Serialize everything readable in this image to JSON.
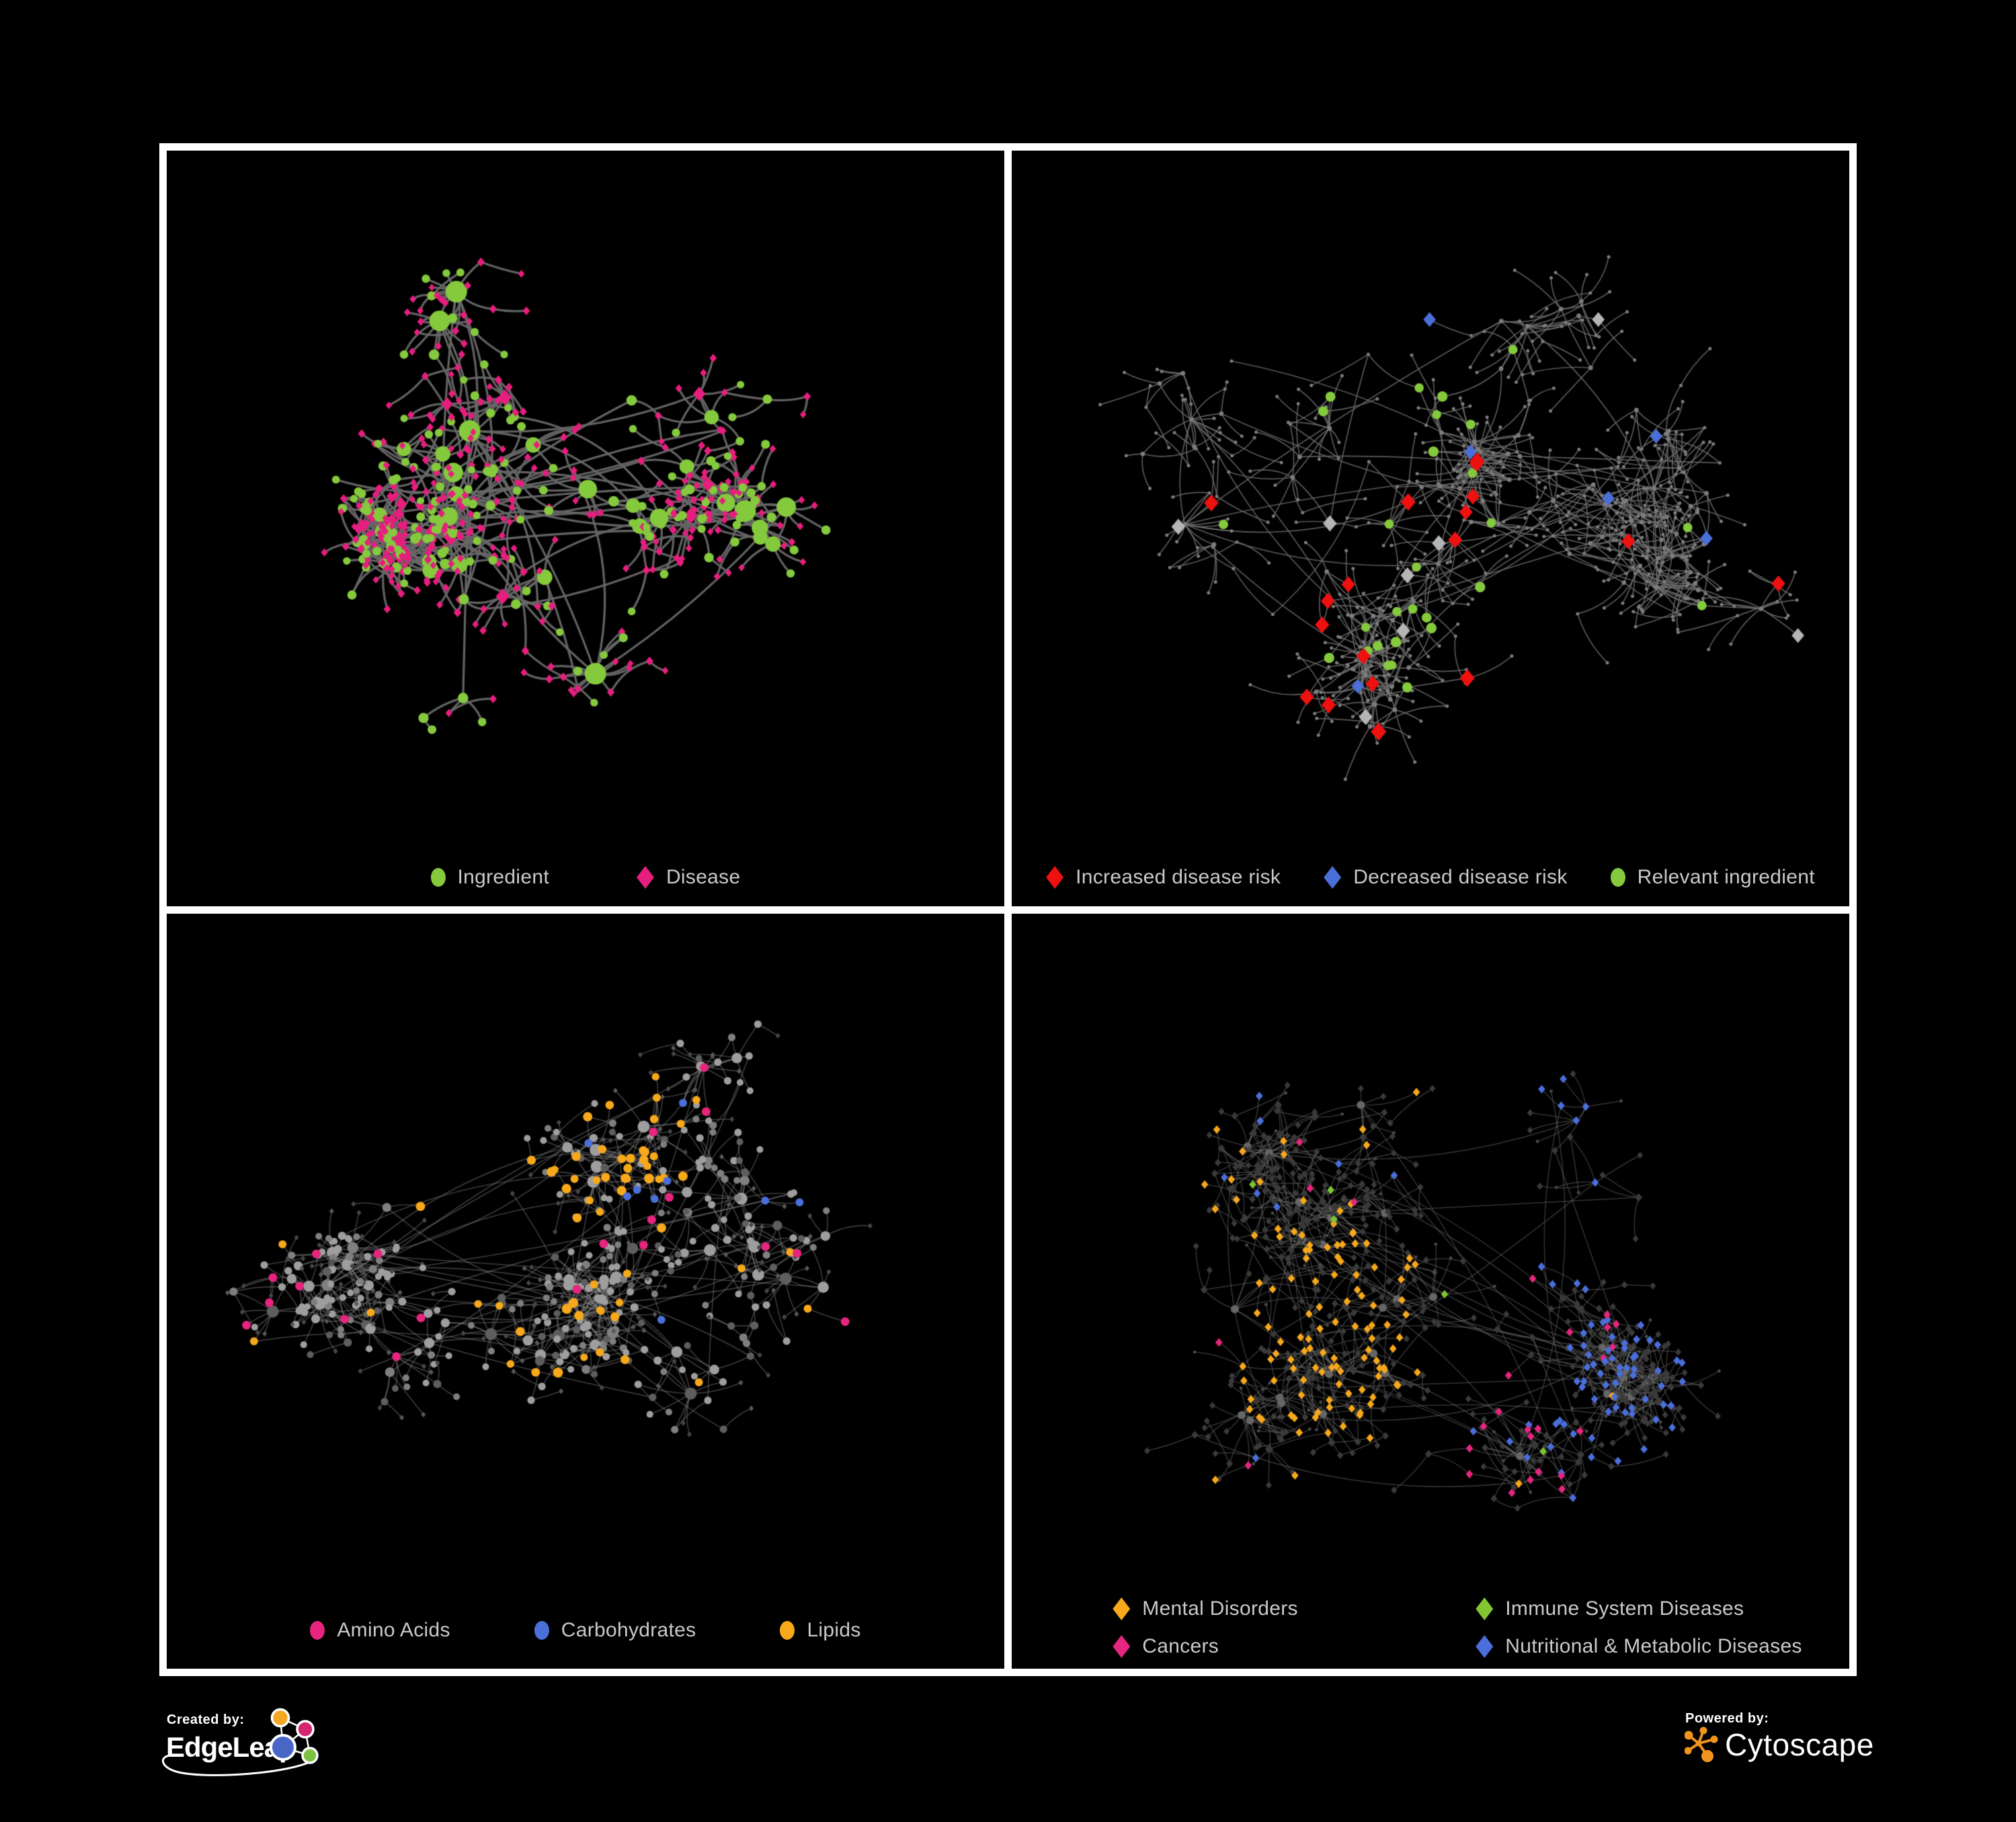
{
  "page": {
    "background": "#000000"
  },
  "panels": [
    {
      "name": "ingredient-disease-network",
      "legend": [
        {
          "shape": "ellipse",
          "color": "#85C93D",
          "label": "Ingredient"
        },
        {
          "shape": "diamond",
          "color": "#E61E7E",
          "label": "Disease"
        }
      ],
      "palette": {
        "green": "#85C93D",
        "pink": "#E61E7E"
      },
      "render": {
        "seed": 1104,
        "nodes": 560,
        "hubs": 13,
        "minDist": 24,
        "varDist": 52,
        "cross": 0.05,
        "bottomPad": 165,
        "edge": {
          "color": "#666666",
          "alpha": 0.95,
          "width": 3.3,
          "curve": 0.22
        },
        "style": "tl"
      }
    },
    {
      "name": "disease-risk-network",
      "legend": [
        {
          "shape": "diamond",
          "color": "#EF1010",
          "label": "Increased disease risk"
        },
        {
          "shape": "diamond",
          "color": "#4A6FD8",
          "label": "Decreased disease risk"
        },
        {
          "shape": "ellipse",
          "color": "#85C93D",
          "label": "Relevant ingredient"
        }
      ],
      "palette": {
        "red": "#EF1010",
        "blue": "#4A6FD8",
        "green": "#85C93D",
        "silver": "#B5B5B5",
        "base": "#7D7D7D"
      },
      "render": {
        "seed": 2317,
        "nodes": 700,
        "hubs": 16,
        "minDist": 30,
        "varDist": 72,
        "cross": 0.04,
        "bottomPad": 165,
        "edge": {
          "color": "#6F6F6F",
          "alpha": 0.8,
          "width": 1.7,
          "curve": 0.18
        },
        "style": "tr"
      }
    },
    {
      "name": "chemical-class-network",
      "legend": [
        {
          "shape": "ellipse",
          "color": "#E6257F",
          "label": "Amino Acids"
        },
        {
          "shape": "ellipse",
          "color": "#4A6FD8",
          "label": "Carbohydrates"
        },
        {
          "shape": "ellipse",
          "color": "#F7A81B",
          "label": "Lipids"
        }
      ],
      "palette": {
        "pink": "#E6257F",
        "blue": "#4A6FD8",
        "orange": "#F7A81B"
      },
      "render": {
        "seed": 3723,
        "nodes": 640,
        "hubs": 14,
        "minDist": 26,
        "varDist": 60,
        "cross": 0.06,
        "bottomPad": 175,
        "edge": {
          "color": "#8F8F8F",
          "alpha": 0.42,
          "width": 1.6,
          "curve": 0.15
        },
        "style": "bl"
      }
    },
    {
      "name": "disease-class-network",
      "legend": [
        {
          "shape": "diamond",
          "color": "#F7A81B",
          "label": "Mental Disorders"
        },
        {
          "shape": "diamond",
          "color": "#82C532",
          "label": "Immune System Diseases"
        },
        {
          "shape": "diamond",
          "color": "#E6257F",
          "label": "Cancers"
        },
        {
          "shape": "diamond",
          "color": "#4A6FDC",
          "label": "Nutritional & Metabolic Diseases"
        }
      ],
      "palette": {
        "orange": "#F7A81B",
        "green": "#82C532",
        "pink": "#E6257F",
        "blue": "#4A6FDC",
        "base": "#3A3A3A"
      },
      "render": {
        "seed": 5309,
        "nodes": 780,
        "hubs": 15,
        "minDist": 26,
        "varDist": 62,
        "cross": 0.05,
        "bottomPad": 200,
        "edge": {
          "color": "#808080",
          "alpha": 0.4,
          "width": 1.5,
          "curve": 0.15
        },
        "style": "br"
      }
    }
  ],
  "footer": {
    "created_by": {
      "label": "Created by:",
      "brand": "EdgeLeap"
    },
    "powered_by": {
      "label": "Powered by:",
      "brand": "Cytoscape"
    },
    "edgeleap_colors": {
      "orange": "#F5A623",
      "pink": "#D6246E",
      "blue": "#4A67C7",
      "green": "#7DC242"
    },
    "cytoscape_color": "#F0941F"
  }
}
